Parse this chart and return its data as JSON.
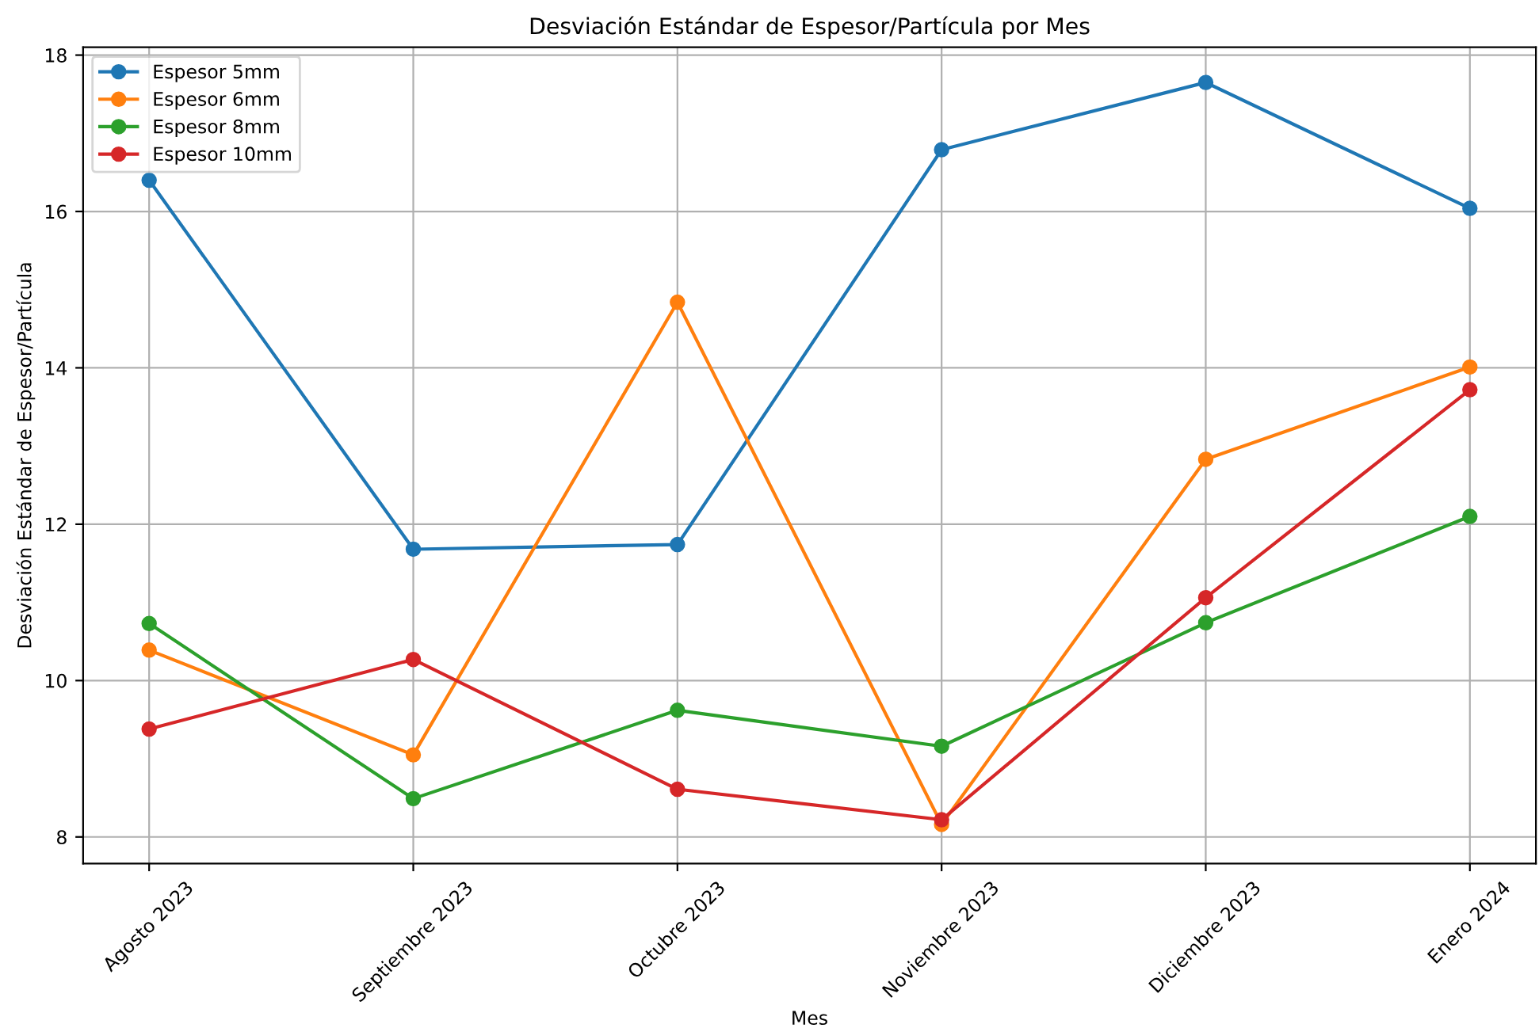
{
  "chart_data": {
    "type": "line",
    "title": "Desviación Estándar de Espesor/Partícula por Mes",
    "xlabel": "Mes",
    "ylabel": "Desviación Estándar de Espesor/Partícula",
    "categories": [
      "Agosto 2023",
      "Septiembre 2023",
      "Octubre 2023",
      "Noviembre 2023",
      "Diciembre 2023",
      "Enero 2024"
    ],
    "series": [
      {
        "name": "Espesor 5mm",
        "color": "#1f77b4",
        "values": [
          16.4,
          11.68,
          11.74,
          16.79,
          17.65,
          16.04
        ]
      },
      {
        "name": "Espesor 6mm",
        "color": "#ff7f0e",
        "values": [
          10.39,
          9.05,
          14.84,
          8.16,
          12.83,
          14.01
        ]
      },
      {
        "name": "Espesor 8mm",
        "color": "#2ca02c",
        "values": [
          10.73,
          8.49,
          9.62,
          9.16,
          10.74,
          12.1
        ]
      },
      {
        "name": "Espesor 10mm",
        "color": "#d62728",
        "values": [
          9.38,
          10.27,
          8.61,
          8.22,
          11.06,
          13.72
        ]
      }
    ],
    "ylim": [
      7.66,
      18.1
    ],
    "yticks": [
      8,
      10,
      12,
      14,
      16,
      18
    ],
    "grid": true,
    "legend": "top left",
    "marker": "circle",
    "line_style": "solid"
  }
}
